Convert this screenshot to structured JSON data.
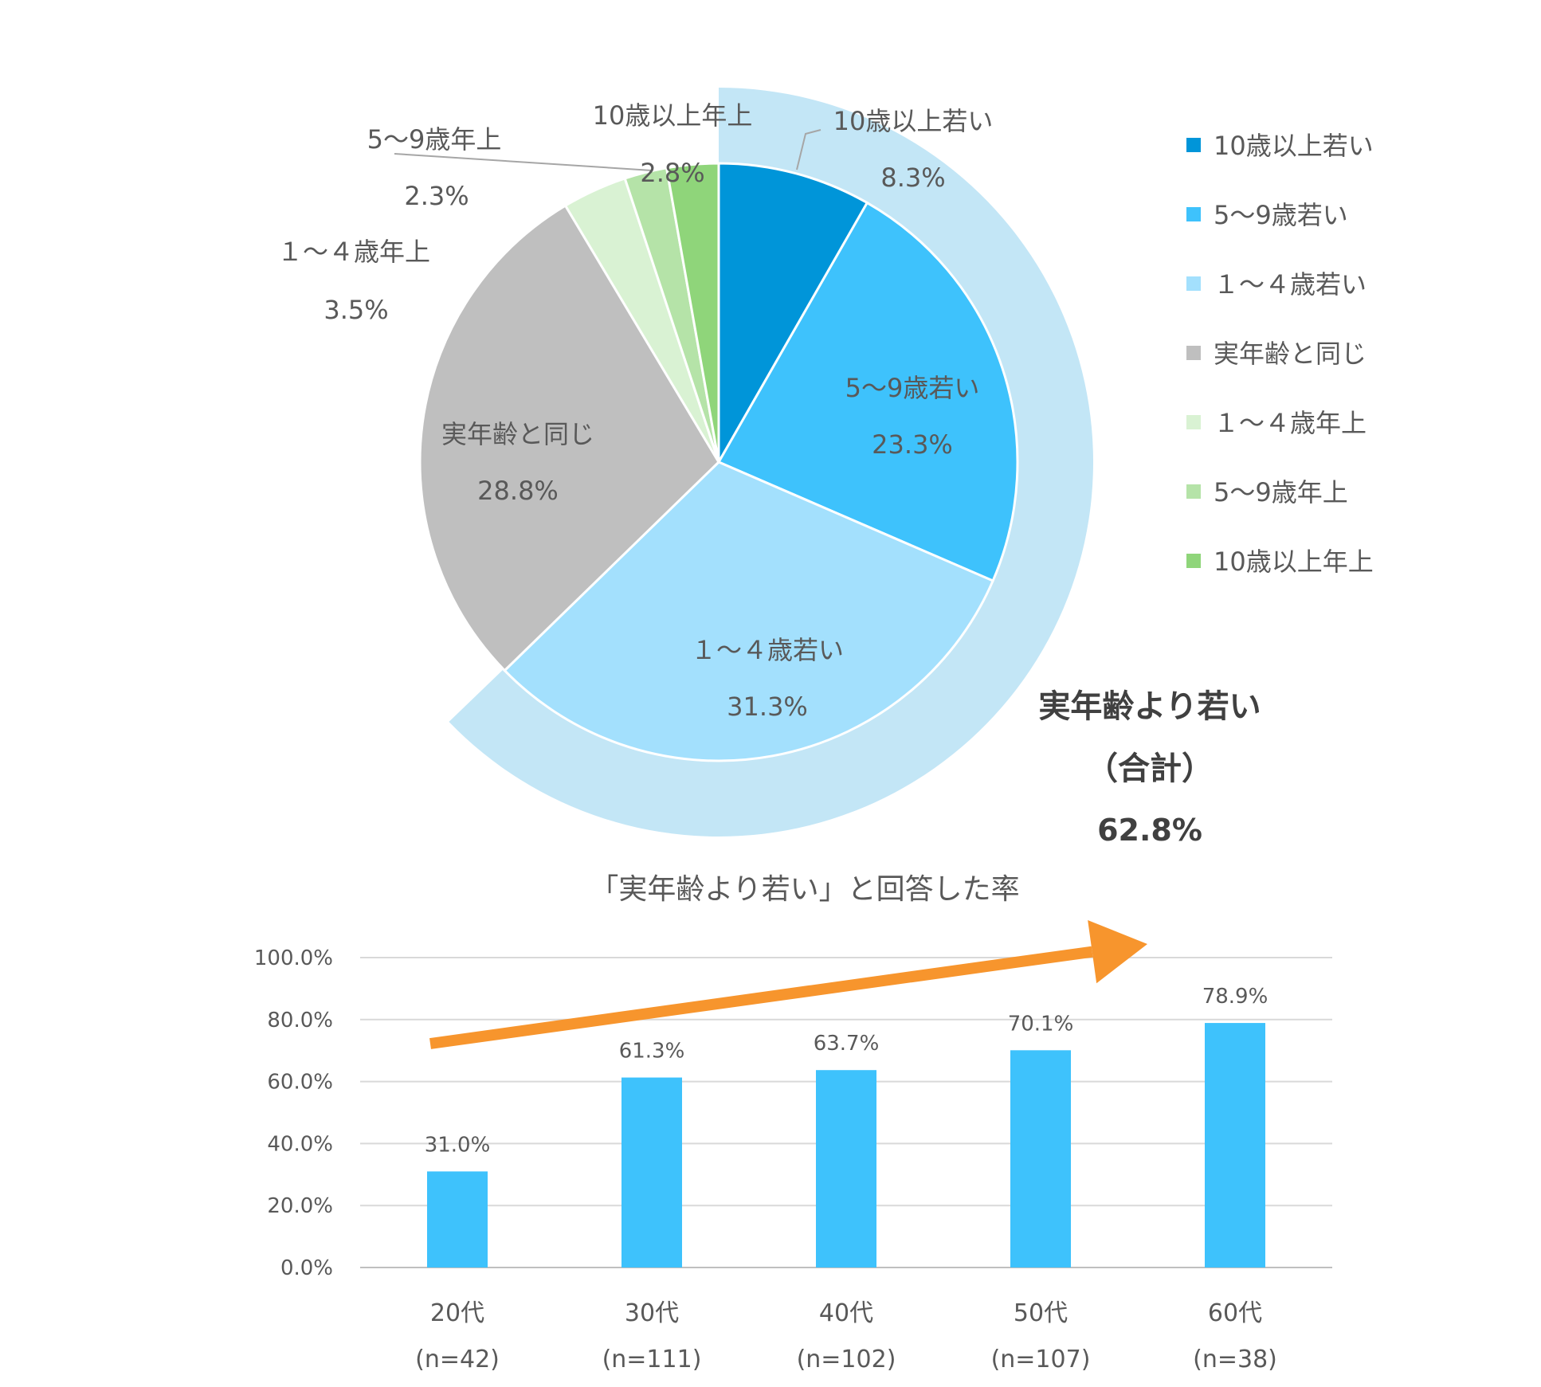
{
  "chart_data": [
    {
      "type": "pie",
      "categories": [
        "10歳以上若い",
        "5〜9歳若い",
        "１〜４歳若い",
        "実年齢と同じ",
        "１〜４歳年上",
        "5〜9歳年上",
        "10歳以上年上"
      ],
      "values": [
        8.3,
        23.3,
        31.3,
        28.8,
        3.5,
        2.3,
        2.8
      ],
      "value_labels": [
        "8.3%",
        "23.3%",
        "31.3%",
        "28.8%",
        "3.5%",
        "2.3%",
        "2.8%"
      ],
      "colors": [
        "#0095d9",
        "#3ec2fc",
        "#a3e0fd",
        "#bfbfbf",
        "#d9f2d3",
        "#b5e3a8",
        "#8fd57a"
      ],
      "legend_position": "right",
      "highlight": {
        "color": "#c3e6f6",
        "label_line1": "実年齢より若い",
        "label_line2": "（合計）",
        "label_value": "62.8%",
        "value": 62.8
      }
    },
    {
      "type": "bar",
      "title": "「実年齢より若い」と回答した率",
      "categories": [
        "20代",
        "30代",
        "40代",
        "50代",
        "60代"
      ],
      "sublabels": [
        "(n=42)",
        "(n=111)",
        "(n=102)",
        "(n=107)",
        "(n=38)"
      ],
      "values": [
        31.0,
        61.3,
        63.7,
        70.1,
        78.9
      ],
      "value_labels": [
        "31.0%",
        "61.3%",
        "63.7%",
        "70.1%",
        "78.9%"
      ],
      "ylim": [
        0,
        100
      ],
      "yticks": [
        "0.0%",
        "20.0%",
        "40.0%",
        "60.0%",
        "80.0%",
        "100.0%"
      ],
      "bar_color": "#3ec2fc",
      "trend_arrow_color": "#f7952d",
      "grid": true
    }
  ]
}
